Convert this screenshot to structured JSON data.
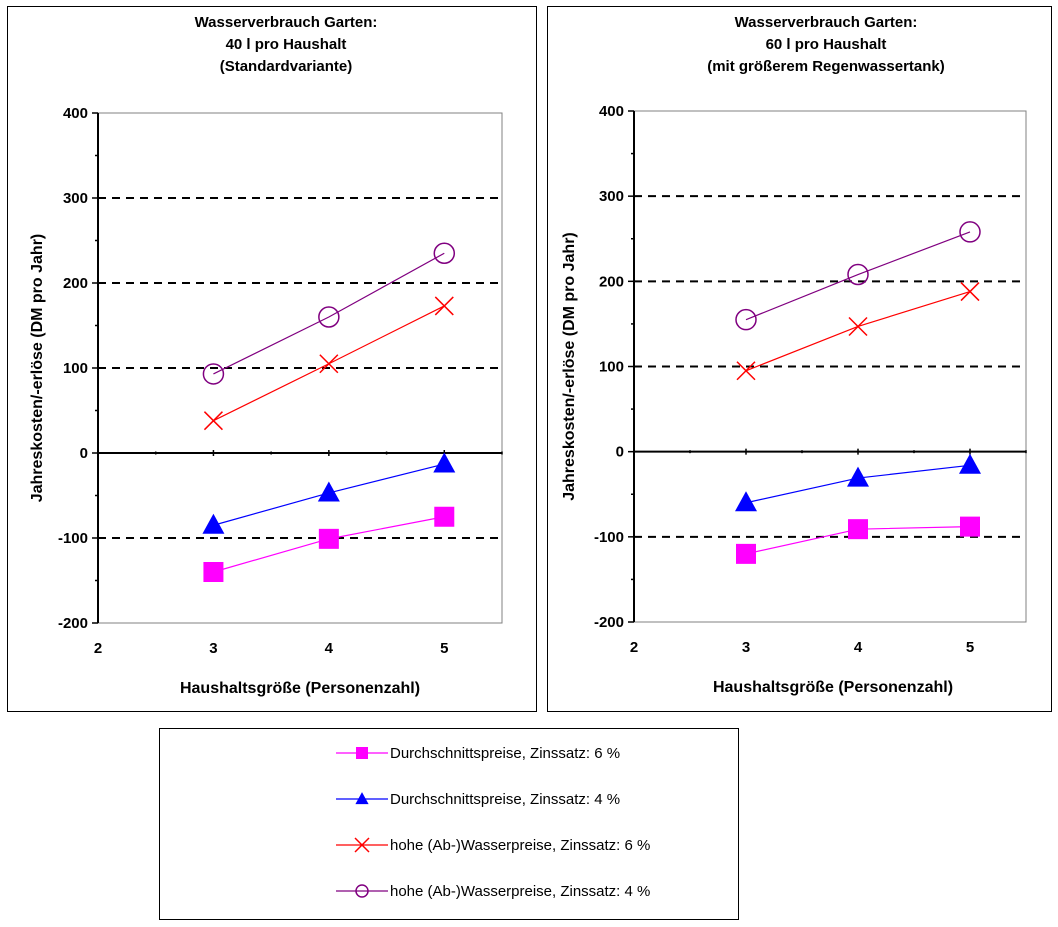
{
  "chart_data": [
    {
      "type": "line",
      "title": [
        "Wasserverbrauch Garten:",
        "40 l pro Haushalt",
        "(Standardvariante)"
      ],
      "xlabel": "Haushaltsgröße (Personenzahl)",
      "ylabel": "Jahreskosten/-erlöse (DM pro Jahr)",
      "xlim": [
        2,
        5.5
      ],
      "ylim": [
        -200,
        400
      ],
      "x_ticks": [
        2,
        3,
        4,
        5
      ],
      "y_ticks": [
        -200,
        -100,
        0,
        100,
        200,
        300,
        400
      ],
      "grid": "dashed horizontal at 100, 200, 300, -100",
      "x": [
        3,
        4,
        5
      ],
      "series": [
        {
          "name": "Durchschnittspreise, Zinssatz: 6 %",
          "values": [
            -140,
            -101,
            -75
          ],
          "color": "#ff00ff",
          "marker": "square"
        },
        {
          "name": "Durchschnittspreise, Zinssatz: 4 %",
          "values": [
            -85,
            -47,
            -13
          ],
          "color": "#0000ff",
          "marker": "triangle"
        },
        {
          "name": "hohe (Ab-)Wasserpreise, Zinssatz: 6 %",
          "values": [
            38,
            105,
            173
          ],
          "color": "#ff0000",
          "marker": "x"
        },
        {
          "name": "hohe (Ab-)Wasserpreise, Zinssatz: 4 %",
          "values": [
            93,
            160,
            235
          ],
          "color": "#800080",
          "marker": "circle"
        }
      ]
    },
    {
      "type": "line",
      "title": [
        "Wasserverbrauch Garten:",
        "60 l pro Haushalt",
        "(mit größerem Regenwassertank)"
      ],
      "xlabel": "Haushaltsgröße (Personenzahl)",
      "ylabel": "Jahreskosten/-erlöse (DM pro Jahr)",
      "xlim": [
        2,
        5.5
      ],
      "ylim": [
        -200,
        400
      ],
      "x_ticks": [
        2,
        3,
        4,
        5
      ],
      "y_ticks": [
        -200,
        -100,
        0,
        100,
        200,
        300,
        400
      ],
      "grid": "dashed horizontal at 100, 200, 300, -100",
      "x": [
        3,
        4,
        5
      ],
      "series": [
        {
          "name": "Durchschnittspreise, Zinssatz: 6 %",
          "values": [
            -120,
            -91,
            -88
          ],
          "color": "#ff00ff",
          "marker": "square"
        },
        {
          "name": "Durchschnittspreise, Zinssatz: 4 %",
          "values": [
            -60,
            -31,
            -16
          ],
          "color": "#0000ff",
          "marker": "triangle"
        },
        {
          "name": "hohe (Ab-)Wasserpreise, Zinssatz: 6 %",
          "values": [
            95,
            147,
            188
          ],
          "color": "#ff0000",
          "marker": "x"
        },
        {
          "name": "hohe (Ab-)Wasserpreise, Zinssatz: 4 %",
          "values": [
            155,
            208,
            258
          ],
          "color": "#800080",
          "marker": "circle"
        }
      ]
    }
  ],
  "legend": {
    "placement": "bottom-center",
    "items": [
      {
        "label": "Durchschnittspreise, Zinssatz: 6 %",
        "color": "#ff00ff",
        "marker": "square"
      },
      {
        "label": "Durchschnittspreise, Zinssatz: 4 %",
        "color": "#0000ff",
        "marker": "triangle"
      },
      {
        "label": "hohe (Ab-)Wasserpreise, Zinssatz: 6 %",
        "color": "#ff0000",
        "marker": "x"
      },
      {
        "label": "hohe (Ab-)Wasserpreise, Zinssatz: 4 %",
        "color": "#800080",
        "marker": "circle"
      }
    ]
  }
}
